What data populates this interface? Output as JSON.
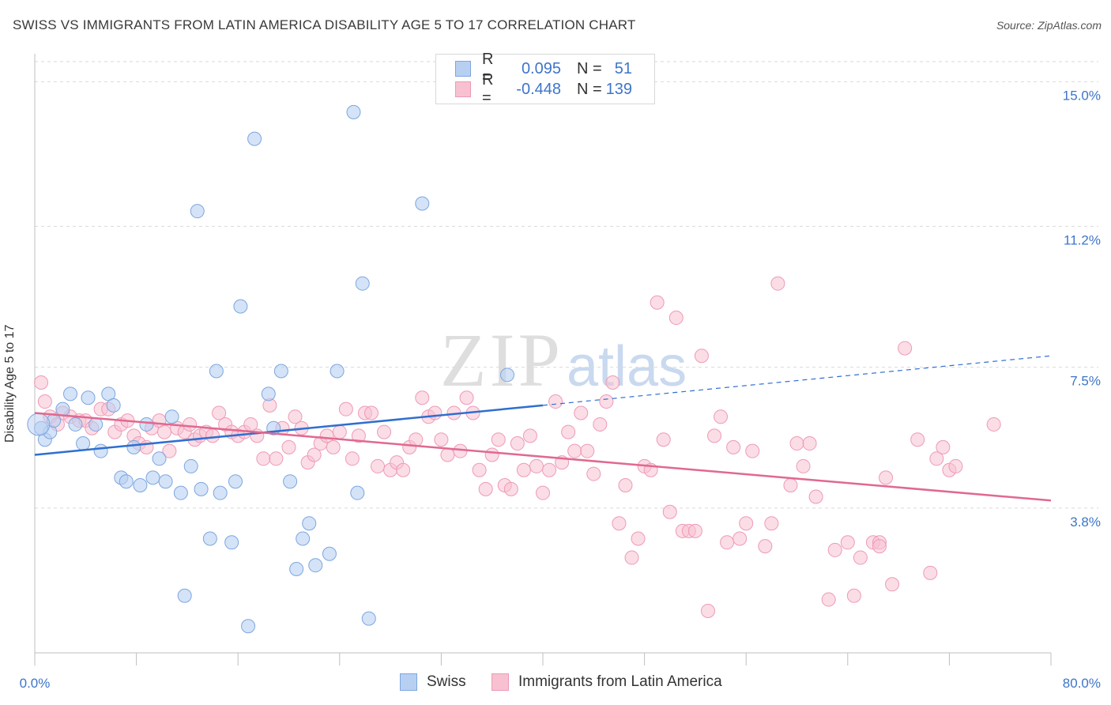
{
  "title": "SWISS VS IMMIGRANTS FROM LATIN AMERICA DISABILITY AGE 5 TO 17 CORRELATION CHART",
  "source": "Source: ZipAtlas.com",
  "watermark": {
    "zip": "ZIP",
    "atlas": "atlas"
  },
  "legend_top": {
    "rows": [
      {
        "r_label": "R =",
        "r_value": "0.095",
        "n_label": "N =",
        "n_value": "51"
      },
      {
        "r_label": "R =",
        "r_value": "-0.448",
        "n_label": "N =",
        "n_value": "139"
      }
    ]
  },
  "legend_bottom": {
    "swiss": "Swiss",
    "latin": "Immigrants from Latin America"
  },
  "colors": {
    "swiss_fill": "#b7d0f2",
    "swiss_stroke": "#7da6e0",
    "swiss_line": "#2f6fcf",
    "latin_fill": "#f7c1d2",
    "latin_stroke": "#ee9ab6",
    "latin_line": "#e0698f",
    "tick_text": "#3d75c9",
    "grid": "#d9d9d9"
  },
  "chart_data": {
    "type": "scatter",
    "title": "SWISS VS IMMIGRANTS FROM LATIN AMERICA DISABILITY AGE 5 TO 17 CORRELATION CHART",
    "xlabel": "",
    "ylabel": "Disability Age 5 to 17",
    "xlim": [
      0,
      80
    ],
    "ylim": [
      0,
      15.9
    ],
    "x_tick_labels": [
      "0.0%",
      "80.0%"
    ],
    "y_ticks": [
      3.8,
      7.5,
      11.2,
      15.0
    ],
    "y_tick_labels": [
      "3.8%",
      "7.5%",
      "11.2%",
      "15.0%"
    ],
    "grid": "horizontal dashed",
    "legend_position": "top-center",
    "series": [
      {
        "name": "Swiss",
        "r": 0.095,
        "n": 51,
        "trend": {
          "x": [
            0,
            40
          ],
          "y": [
            5.2,
            6.5
          ],
          "dashed_extension": {
            "x": [
              40,
              80
            ],
            "y": [
              6.5,
              7.8
            ]
          }
        },
        "points": [
          [
            0.8,
            5.6
          ],
          [
            1.2,
            5.8
          ],
          [
            1.5,
            6.1
          ],
          [
            2.2,
            6.4
          ],
          [
            2.8,
            6.8
          ],
          [
            3.2,
            6.0
          ],
          [
            3.8,
            5.5
          ],
          [
            4.2,
            6.7
          ],
          [
            4.8,
            6.0
          ],
          [
            5.2,
            5.3
          ],
          [
            5.8,
            6.8
          ],
          [
            6.2,
            6.5
          ],
          [
            6.8,
            4.6
          ],
          [
            7.2,
            4.5
          ],
          [
            7.8,
            5.4
          ],
          [
            8.3,
            4.4
          ],
          [
            8.8,
            6.0
          ],
          [
            9.3,
            4.6
          ],
          [
            9.8,
            5.1
          ],
          [
            10.3,
            4.5
          ],
          [
            10.8,
            6.2
          ],
          [
            11.5,
            4.2
          ],
          [
            11.8,
            1.5
          ],
          [
            12.3,
            4.9
          ],
          [
            12.8,
            11.6
          ],
          [
            13.1,
            4.3
          ],
          [
            13.8,
            3.0
          ],
          [
            14.3,
            7.4
          ],
          [
            14.6,
            4.2
          ],
          [
            15.5,
            2.9
          ],
          [
            15.8,
            4.5
          ],
          [
            16.2,
            9.1
          ],
          [
            16.8,
            0.7
          ],
          [
            17.3,
            13.5
          ],
          [
            18.4,
            6.8
          ],
          [
            18.8,
            5.9
          ],
          [
            19.4,
            7.4
          ],
          [
            20.1,
            4.5
          ],
          [
            20.6,
            2.2
          ],
          [
            21.1,
            3.0
          ],
          [
            21.6,
            3.4
          ],
          [
            22.1,
            2.3
          ],
          [
            23.2,
            2.6
          ],
          [
            23.8,
            7.4
          ],
          [
            25.1,
            14.2
          ],
          [
            25.4,
            4.2
          ],
          [
            25.8,
            9.7
          ],
          [
            26.3,
            0.9
          ],
          [
            30.5,
            11.8
          ],
          [
            37.2,
            7.3
          ],
          [
            0.5,
            5.9
          ]
        ]
      },
      {
        "name": "Immigrants from Latin America",
        "r": -0.448,
        "n": 139,
        "trend": {
          "x": [
            0,
            80
          ],
          "y": [
            6.3,
            4.0
          ]
        },
        "points": [
          [
            0.5,
            7.1
          ],
          [
            0.8,
            6.6
          ],
          [
            1.2,
            6.2
          ],
          [
            1.8,
            6.0
          ],
          [
            2.2,
            6.3
          ],
          [
            2.8,
            6.2
          ],
          [
            3.5,
            6.1
          ],
          [
            4.0,
            6.1
          ],
          [
            4.5,
            5.9
          ],
          [
            5.2,
            6.4
          ],
          [
            5.8,
            6.4
          ],
          [
            6.3,
            5.8
          ],
          [
            6.8,
            6.0
          ],
          [
            7.3,
            6.1
          ],
          [
            7.8,
            5.7
          ],
          [
            8.2,
            5.5
          ],
          [
            8.8,
            5.4
          ],
          [
            9.2,
            5.9
          ],
          [
            9.8,
            6.1
          ],
          [
            10.2,
            5.8
          ],
          [
            10.6,
            5.3
          ],
          [
            11.2,
            5.9
          ],
          [
            11.8,
            5.8
          ],
          [
            12.2,
            6.0
          ],
          [
            12.6,
            5.6
          ],
          [
            13.0,
            5.7
          ],
          [
            13.5,
            5.8
          ],
          [
            14.0,
            5.7
          ],
          [
            14.5,
            6.3
          ],
          [
            15.0,
            6.0
          ],
          [
            15.5,
            5.8
          ],
          [
            16.0,
            5.7
          ],
          [
            16.5,
            5.8
          ],
          [
            17.0,
            6.0
          ],
          [
            17.5,
            5.7
          ],
          [
            18.0,
            5.1
          ],
          [
            18.5,
            6.5
          ],
          [
            19.0,
            5.1
          ],
          [
            19.5,
            5.9
          ],
          [
            20.0,
            5.4
          ],
          [
            20.5,
            6.2
          ],
          [
            21.0,
            5.9
          ],
          [
            21.5,
            5.0
          ],
          [
            22.0,
            5.2
          ],
          [
            22.5,
            5.5
          ],
          [
            23.0,
            5.7
          ],
          [
            23.5,
            5.4
          ],
          [
            24.0,
            5.8
          ],
          [
            24.5,
            6.4
          ],
          [
            25.0,
            5.1
          ],
          [
            25.5,
            5.7
          ],
          [
            26.0,
            6.3
          ],
          [
            26.5,
            6.3
          ],
          [
            27.0,
            4.9
          ],
          [
            27.5,
            5.8
          ],
          [
            28.0,
            4.8
          ],
          [
            28.5,
            5.0
          ],
          [
            29.0,
            4.8
          ],
          [
            29.5,
            5.4
          ],
          [
            30.0,
            5.6
          ],
          [
            30.5,
            6.7
          ],
          [
            31.0,
            6.2
          ],
          [
            31.5,
            6.3
          ],
          [
            32.0,
            5.6
          ],
          [
            32.5,
            5.2
          ],
          [
            33.0,
            6.3
          ],
          [
            33.5,
            5.3
          ],
          [
            34.0,
            6.7
          ],
          [
            34.5,
            6.3
          ],
          [
            35.0,
            4.8
          ],
          [
            35.5,
            4.3
          ],
          [
            36.0,
            5.2
          ],
          [
            36.5,
            5.6
          ],
          [
            37.0,
            4.4
          ],
          [
            37.5,
            4.3
          ],
          [
            38.0,
            5.5
          ],
          [
            38.5,
            4.8
          ],
          [
            39.0,
            5.7
          ],
          [
            39.5,
            4.9
          ],
          [
            40.0,
            4.2
          ],
          [
            40.5,
            4.8
          ],
          [
            41.0,
            6.6
          ],
          [
            41.5,
            5.0
          ],
          [
            42.0,
            5.8
          ],
          [
            42.5,
            5.3
          ],
          [
            43.0,
            6.3
          ],
          [
            43.5,
            5.3
          ],
          [
            44.0,
            4.7
          ],
          [
            44.5,
            6.0
          ],
          [
            45.0,
            6.6
          ],
          [
            45.5,
            7.1
          ],
          [
            46.0,
            3.4
          ],
          [
            46.5,
            4.4
          ],
          [
            47.0,
            2.5
          ],
          [
            47.5,
            3.0
          ],
          [
            48.0,
            4.9
          ],
          [
            48.5,
            4.8
          ],
          [
            49.0,
            9.2
          ],
          [
            49.5,
            5.6
          ],
          [
            50.0,
            3.7
          ],
          [
            50.5,
            8.8
          ],
          [
            51.0,
            3.2
          ],
          [
            51.5,
            3.2
          ],
          [
            52.0,
            3.2
          ],
          [
            52.5,
            7.8
          ],
          [
            53.0,
            1.1
          ],
          [
            53.5,
            5.7
          ],
          [
            54.0,
            6.2
          ],
          [
            54.5,
            2.9
          ],
          [
            55.0,
            5.4
          ],
          [
            55.5,
            3.0
          ],
          [
            56.0,
            3.4
          ],
          [
            56.5,
            5.3
          ],
          [
            57.5,
            2.8
          ],
          [
            58.0,
            3.4
          ],
          [
            58.5,
            9.7
          ],
          [
            59.5,
            4.4
          ],
          [
            60.0,
            5.5
          ],
          [
            60.5,
            4.9
          ],
          [
            61.0,
            5.5
          ],
          [
            61.5,
            4.1
          ],
          [
            62.5,
            1.4
          ],
          [
            63.0,
            2.7
          ],
          [
            64.0,
            2.9
          ],
          [
            64.5,
            1.5
          ],
          [
            65.0,
            2.5
          ],
          [
            66.0,
            2.9
          ],
          [
            66.5,
            2.9
          ],
          [
            67.0,
            4.6
          ],
          [
            67.5,
            1.8
          ],
          [
            68.5,
            8.0
          ],
          [
            69.5,
            5.6
          ],
          [
            70.5,
            2.1
          ],
          [
            71.0,
            5.1
          ],
          [
            71.5,
            5.4
          ],
          [
            72.0,
            4.8
          ],
          [
            72.5,
            4.9
          ],
          [
            75.5,
            6.0
          ],
          [
            66.5,
            2.8
          ]
        ]
      }
    ]
  }
}
